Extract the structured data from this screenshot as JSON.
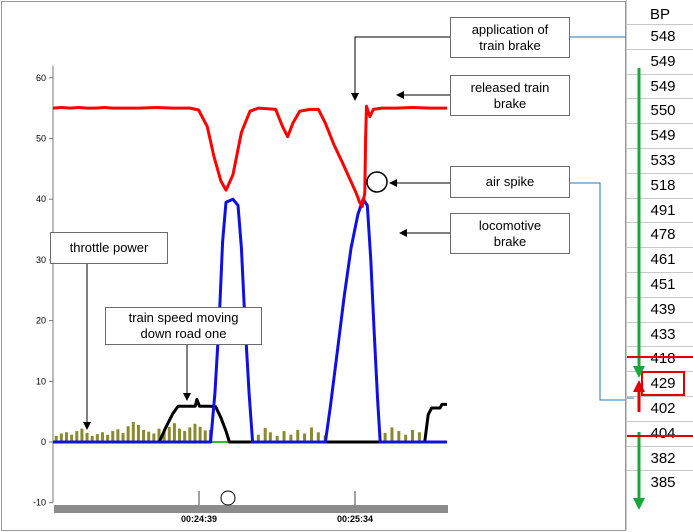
{
  "chart_data": {
    "type": "line",
    "y_ticks": [
      -10,
      0,
      10,
      20,
      30,
      40,
      50,
      60
    ],
    "ylim": [
      -10,
      62
    ],
    "x_tick_labels": [
      "00:24:39",
      "00:25:34"
    ],
    "series": [
      {
        "key": "train_brake_pipe",
        "color": "#ff0000",
        "points": [
          [
            0,
            55
          ],
          [
            0.5,
            55.1
          ],
          [
            1,
            55
          ],
          [
            1.5,
            55.1
          ],
          [
            2,
            55
          ],
          [
            2.5,
            55
          ],
          [
            3,
            55.1
          ],
          [
            3.5,
            55
          ],
          [
            4,
            55
          ],
          [
            5,
            55
          ],
          [
            6,
            55.1
          ],
          [
            7,
            55
          ],
          [
            8,
            55
          ],
          [
            8.5,
            54.7
          ],
          [
            9,
            52
          ],
          [
            9.4,
            47
          ],
          [
            9.8,
            43
          ],
          [
            10.1,
            41.5
          ],
          [
            10.5,
            44
          ],
          [
            11,
            51
          ],
          [
            11.5,
            54.5
          ],
          [
            12,
            55
          ],
          [
            13,
            54.8
          ],
          [
            13.4,
            52
          ],
          [
            13.7,
            50.3
          ],
          [
            14,
            52.5
          ],
          [
            14.4,
            54.5
          ],
          [
            15,
            54.8
          ],
          [
            15.5,
            54.8
          ],
          [
            15.9,
            52.5
          ],
          [
            16.4,
            49
          ],
          [
            16.9,
            46
          ],
          [
            17.3,
            43.5
          ],
          [
            17.7,
            41
          ],
          [
            17.9,
            39.5
          ],
          [
            18.05,
            38.8
          ],
          [
            18.2,
            41
          ],
          [
            18.25,
            50
          ],
          [
            18.3,
            55.3
          ],
          [
            18.5,
            53.6
          ],
          [
            18.7,
            54.8
          ],
          [
            19.2,
            55
          ],
          [
            20,
            55
          ],
          [
            21,
            55.1
          ],
          [
            22,
            55
          ],
          [
            23,
            55
          ]
        ]
      },
      {
        "key": "locomotive_brake",
        "color": "#1010e0",
        "points": [
          [
            0,
            0
          ],
          [
            9.2,
            0
          ],
          [
            9.45,
            8
          ],
          [
            9.7,
            20
          ],
          [
            9.9,
            33
          ],
          [
            10.1,
            39.5
          ],
          [
            10.5,
            40
          ],
          [
            10.8,
            39
          ],
          [
            11,
            32
          ],
          [
            11.2,
            20
          ],
          [
            11.45,
            8
          ],
          [
            11.65,
            0
          ],
          [
            15.9,
            0
          ],
          [
            16.2,
            6
          ],
          [
            16.6,
            15
          ],
          [
            17,
            24
          ],
          [
            17.4,
            32
          ],
          [
            17.8,
            37.5
          ],
          [
            18.1,
            40
          ],
          [
            18.35,
            39
          ],
          [
            18.55,
            30
          ],
          [
            18.75,
            18
          ],
          [
            18.95,
            7
          ],
          [
            19.1,
            0
          ],
          [
            23,
            0
          ]
        ]
      },
      {
        "key": "train_speed",
        "color": "#000000",
        "points": [
          [
            0,
            0
          ],
          [
            6.2,
            0
          ],
          [
            6.6,
            2.5
          ],
          [
            7,
            4.7
          ],
          [
            7.3,
            5.9
          ],
          [
            8.3,
            5.9
          ],
          [
            8.4,
            7
          ],
          [
            8.55,
            5.9
          ],
          [
            9.2,
            5.9
          ],
          [
            9.5,
            5.8
          ],
          [
            9.8,
            4
          ],
          [
            10.1,
            1.8
          ],
          [
            10.3,
            0
          ],
          [
            21.7,
            0
          ],
          [
            21.9,
            4.5
          ],
          [
            22.1,
            5.6
          ],
          [
            22.6,
            5.6
          ],
          [
            22.7,
            6.2
          ],
          [
            23,
            6.2
          ]
        ]
      },
      {
        "key": "ground_line",
        "color": "#22c322",
        "points": [
          [
            0,
            0
          ],
          [
            23,
            0
          ]
        ]
      }
    ],
    "throttle_bars": [
      [
        0.1,
        1
      ],
      [
        0.4,
        1.4
      ],
      [
        0.7,
        1.6
      ],
      [
        1.0,
        1.2
      ],
      [
        1.3,
        1.8
      ],
      [
        1.6,
        2.2
      ],
      [
        1.9,
        1.5
      ],
      [
        2.2,
        1.0
      ],
      [
        2.5,
        1.3
      ],
      [
        2.8,
        1.6
      ],
      [
        3.1,
        1.2
      ],
      [
        3.4,
        1.8
      ],
      [
        3.7,
        2.1
      ],
      [
        4.0,
        1.5
      ],
      [
        4.3,
        2.6
      ],
      [
        4.6,
        3.3
      ],
      [
        4.9,
        2.8
      ],
      [
        5.2,
        2.0
      ],
      [
        5.5,
        1.7
      ],
      [
        5.8,
        1.4
      ],
      [
        6.1,
        2.2
      ],
      [
        6.4,
        1.8
      ],
      [
        6.7,
        2.5
      ],
      [
        7.0,
        3.1
      ],
      [
        7.3,
        2.2
      ],
      [
        7.6,
        1.8
      ],
      [
        7.9,
        2.4
      ],
      [
        8.2,
        3.0
      ],
      [
        8.5,
        2.5
      ],
      [
        8.8,
        1.9
      ],
      [
        9.1,
        2.0
      ],
      [
        11.9,
        1.2
      ],
      [
        12.3,
        2.3
      ],
      [
        12.6,
        1.6
      ],
      [
        13.0,
        1.0
      ],
      [
        13.4,
        1.8
      ],
      [
        13.8,
        1.2
      ],
      [
        14.2,
        2.0
      ],
      [
        14.6,
        1.4
      ],
      [
        15.0,
        2.4
      ],
      [
        15.4,
        1.6
      ],
      [
        15.8,
        1.1
      ],
      [
        19.3,
        1.5
      ],
      [
        19.7,
        2.4
      ],
      [
        20.1,
        1.8
      ],
      [
        20.5,
        1.2
      ],
      [
        20.9,
        2.0
      ],
      [
        21.3,
        1.6
      ]
    ],
    "annotations": [
      {
        "key": "app_brake",
        "text": "application of\ntrain brake"
      },
      {
        "key": "released_brake",
        "text": "released  train\nbrake"
      },
      {
        "key": "air_spike",
        "text": "air spike"
      },
      {
        "key": "loco_brake",
        "text": "locomotive\nbrake"
      },
      {
        "key": "throttle",
        "text": "throttle power"
      },
      {
        "key": "speed",
        "text": "train speed moving\ndown road one"
      }
    ]
  },
  "bp_panel": {
    "header": "BP",
    "values": [
      "548",
      "549",
      "549",
      "550",
      "549",
      "533",
      "518",
      "491",
      "478",
      "461",
      "451",
      "439",
      "433",
      "418",
      "429",
      "402",
      "404",
      "382",
      "385"
    ],
    "highlighted_value": "429"
  }
}
